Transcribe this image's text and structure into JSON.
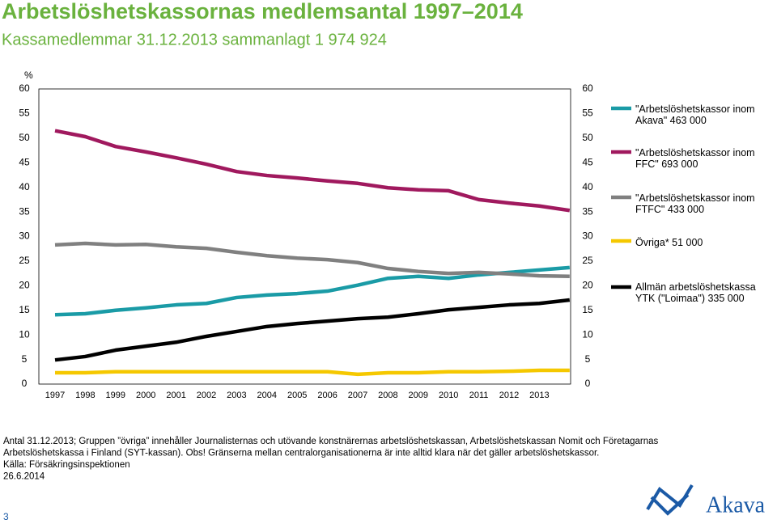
{
  "chart_data": {
    "type": "line",
    "title": "Arbetslöshetskassornas medlemsantal 1997–2014",
    "subtitle": "Kassamedlemmar 31.12.2013 sammanlagt 1 974 924",
    "y_label": "%",
    "categories": [
      "1997",
      "1998",
      "1999",
      "2000",
      "2001",
      "2002",
      "2003",
      "2004",
      "2005",
      "2006",
      "2007",
      "2008",
      "2009",
      "2010",
      "2011",
      "2012",
      "2013",
      null
    ],
    "series": [
      {
        "name": "\"Arbetslöshetskassor inom Akava\" 463 000",
        "color": "#1a9ba6",
        "values": [
          14.1,
          14.3,
          15.0,
          15.5,
          16.1,
          16.4,
          17.6,
          18.1,
          18.4,
          18.9,
          20.1,
          21.5,
          21.9,
          21.5,
          22.2,
          22.7,
          23.2,
          23.7
        ]
      },
      {
        "name": "\"Arbetslöshetskassor inom FFC\" 693 000",
        "color": "#a0195e",
        "values": [
          51.5,
          50.3,
          48.3,
          47.2,
          46.0,
          44.7,
          43.2,
          42.4,
          41.9,
          41.3,
          40.8,
          39.9,
          39.5,
          39.3,
          37.5,
          36.8,
          36.2,
          35.3
        ]
      },
      {
        "name": "\"Arbetslöshetskassor inom FTFC\" 433 000",
        "color": "#808080",
        "values": [
          28.3,
          28.6,
          28.3,
          28.4,
          27.9,
          27.6,
          26.8,
          26.1,
          25.6,
          25.3,
          24.7,
          23.5,
          22.9,
          22.5,
          22.7,
          22.4,
          22.0,
          21.9
        ]
      },
      {
        "name": "Övriga* 51 000",
        "color": "#f5c800",
        "values": [
          2.3,
          2.3,
          2.5,
          2.5,
          2.5,
          2.5,
          2.5,
          2.5,
          2.5,
          2.5,
          2.0,
          2.3,
          2.3,
          2.5,
          2.5,
          2.6,
          2.8,
          2.8
        ]
      },
      {
        "name": "Allmän arbetslöshetskassa YTK (\"Loimaa\") 335 000",
        "color": "#000000",
        "values": [
          4.9,
          5.6,
          6.9,
          7.7,
          8.5,
          9.7,
          10.7,
          11.7,
          12.3,
          12.8,
          13.3,
          13.6,
          14.3,
          15.1,
          15.6,
          16.1,
          16.4,
          17.1
        ]
      }
    ],
    "ylim": [
      0,
      60
    ],
    "yticks": [
      0,
      5,
      10,
      15,
      20,
      25,
      30,
      35,
      40,
      45,
      50,
      55,
      60
    ],
    "y2lim": [
      0,
      60
    ],
    "y2ticks": [
      0,
      5,
      10,
      15,
      20,
      25,
      30,
      35,
      40,
      45,
      50,
      55,
      60
    ],
    "grid": false,
    "legend": "right",
    "notes": [
      "Antal 31.12.2013; Gruppen ”övriga” innehåller Journalisternas och utövande konstnärernas arbetslöshetskassan, Arbetslöshetskassan Nomit och Företagarnas",
      "Arbetslöshetskassa i Finland (SYT-kassan). Obs! Gränserna mellan centralorganisationerna är inte alltid klara när det gäller arbetslöshetskassor.",
      "Källa: Försäkringsinspektionen",
      "26.6.2014"
    ],
    "page_number": "3",
    "logo": "Akava"
  }
}
